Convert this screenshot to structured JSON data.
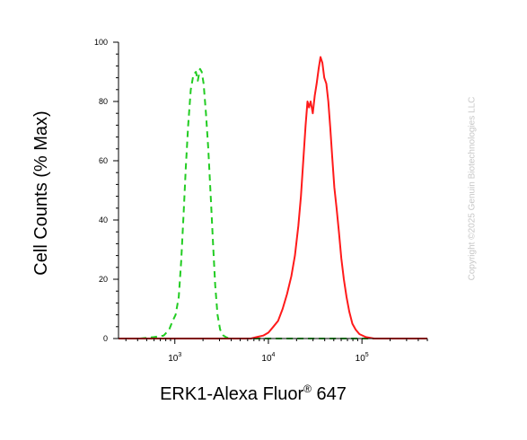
{
  "chart_data": {
    "type": "line",
    "xlabel": "ERK1-Alexa Fluor",
    "xlabel_superscript": "®",
    "xlabel_suffix": " 647",
    "ylabel": "Cell Counts (% Max)",
    "x_scale": "log",
    "xlim": [
      250,
      500000
    ],
    "ylim": [
      0,
      100
    ],
    "y_ticks": [
      {
        "value": 0,
        "label": "0"
      },
      {
        "value": 20,
        "label": "20"
      },
      {
        "value": 40,
        "label": "40"
      },
      {
        "value": 60,
        "label": "60"
      },
      {
        "value": 80,
        "label": "80"
      },
      {
        "value": 100,
        "label": "100"
      }
    ],
    "x_ticks": [
      {
        "value": 1000,
        "base": "10",
        "exp": "3"
      },
      {
        "value": 10000,
        "base": "10",
        "exp": "4"
      },
      {
        "value": 100000,
        "base": "10",
        "exp": "5"
      }
    ],
    "legend": "none",
    "grid": false,
    "series": [
      {
        "color": "#22cc22",
        "style": "dashed",
        "points": [
          [
            250,
            0
          ],
          [
            420,
            0
          ],
          [
            600,
            0.5
          ],
          [
            760,
            1
          ],
          [
            870,
            3
          ],
          [
            950,
            6
          ],
          [
            1020,
            8
          ],
          [
            1100,
            14
          ],
          [
            1170,
            26
          ],
          [
            1240,
            42
          ],
          [
            1310,
            58
          ],
          [
            1390,
            72
          ],
          [
            1480,
            84
          ],
          [
            1580,
            89
          ],
          [
            1680,
            90
          ],
          [
            1760,
            87
          ],
          [
            1860,
            91
          ],
          [
            1940,
            90
          ],
          [
            2030,
            86
          ],
          [
            2150,
            76
          ],
          [
            2280,
            64
          ],
          [
            2420,
            48
          ],
          [
            2560,
            32
          ],
          [
            2700,
            18
          ],
          [
            2860,
            8
          ],
          [
            3050,
            3
          ],
          [
            3300,
            1
          ],
          [
            3600,
            0.3
          ],
          [
            4200,
            0
          ],
          [
            500000,
            0
          ]
        ]
      },
      {
        "color": "#ff1a1a",
        "style": "solid",
        "points": [
          [
            250,
            0
          ],
          [
            6500,
            0
          ],
          [
            7500,
            0.5
          ],
          [
            8800,
            1
          ],
          [
            10000,
            2
          ],
          [
            11300,
            4
          ],
          [
            12700,
            6
          ],
          [
            14200,
            10
          ],
          [
            15800,
            15
          ],
          [
            17600,
            21
          ],
          [
            19200,
            28
          ],
          [
            20900,
            38
          ],
          [
            22300,
            48
          ],
          [
            23600,
            60
          ],
          [
            25000,
            72
          ],
          [
            26200,
            80
          ],
          [
            27200,
            78
          ],
          [
            28300,
            80
          ],
          [
            29800,
            76
          ],
          [
            31300,
            82
          ],
          [
            32800,
            86
          ],
          [
            34400,
            91
          ],
          [
            36100,
            95
          ],
          [
            37800,
            93
          ],
          [
            39600,
            88
          ],
          [
            41600,
            86
          ],
          [
            43700,
            80
          ],
          [
            45900,
            71
          ],
          [
            48200,
            61
          ],
          [
            50700,
            51
          ],
          [
            53500,
            44
          ],
          [
            56700,
            36
          ],
          [
            60200,
            27
          ],
          [
            64000,
            20
          ],
          [
            68400,
            14
          ],
          [
            73300,
            9
          ],
          [
            79000,
            5
          ],
          [
            85700,
            3
          ],
          [
            94000,
            1.5
          ],
          [
            110000,
            0.5
          ],
          [
            135000,
            0
          ],
          [
            500000,
            0
          ]
        ]
      }
    ]
  },
  "watermark": "Copyright ©2025 Genuin Biotechnologies LLC"
}
